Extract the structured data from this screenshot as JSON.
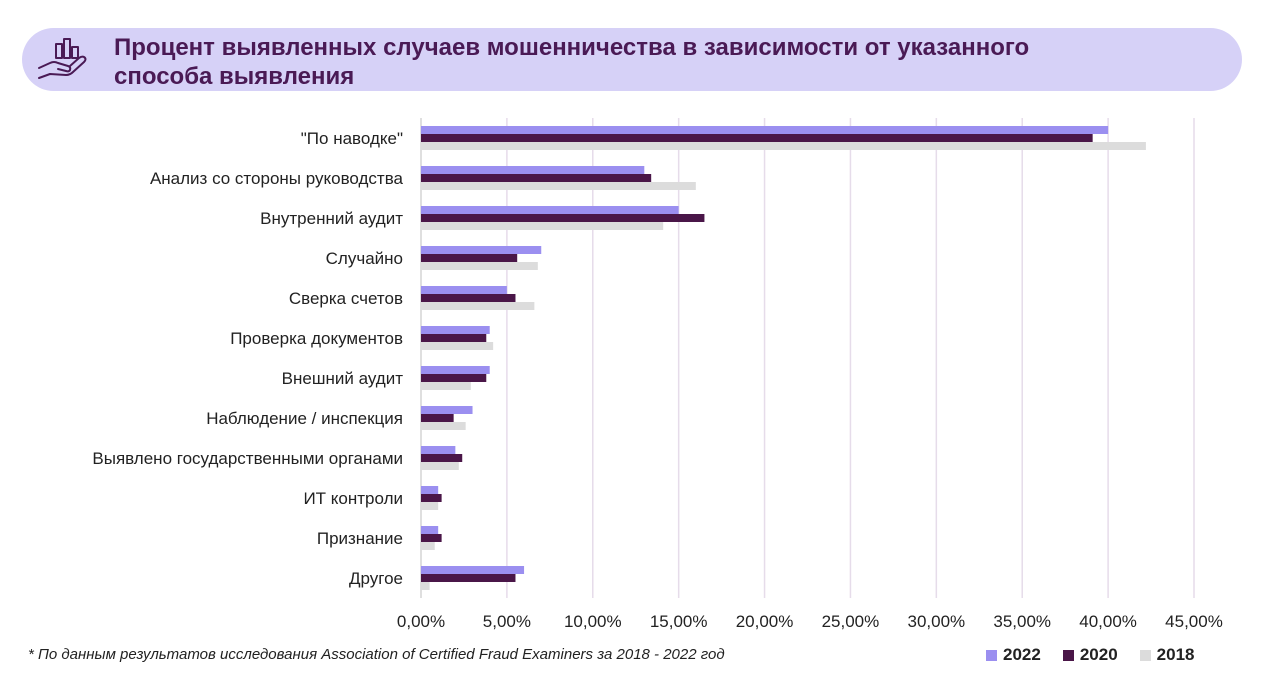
{
  "header": {
    "title_line1": "Процент выявленных случаев мошенничества в зависимости от указанного",
    "title_line2": "способа выявления",
    "icon": "hand-chart-icon"
  },
  "footnote": "* По данным результатов исследования Association of Certified Fraud Examiners за 2018 - 2022 год",
  "colors": {
    "2022": "#9b8ff0",
    "2020": "#4a1648",
    "2018": "#dcdcdc",
    "grid": "#e6dcea"
  },
  "chart_data": {
    "type": "bar",
    "orientation": "horizontal",
    "title": "Процент выявленных случаев мошенничества в зависимости от указанного способа выявления",
    "categories": [
      "\"По наводке\"",
      "Анализ со стороны руководства",
      "Внутренний аудит",
      "Случайно",
      "Сверка счетов",
      "Проверка документов",
      "Внешний аудит",
      "Наблюдение / инспекция",
      "Выявлено государственными органами",
      "ИТ контроли",
      "Признание",
      "Другое"
    ],
    "series": [
      {
        "name": "2022",
        "values": [
          40.0,
          13.0,
          15.0,
          7.0,
          5.0,
          4.0,
          4.0,
          3.0,
          2.0,
          1.0,
          1.0,
          6.0
        ]
      },
      {
        "name": "2020",
        "values": [
          39.1,
          13.4,
          16.5,
          5.6,
          5.5,
          3.8,
          3.8,
          1.9,
          2.4,
          1.2,
          1.2,
          5.5
        ]
      },
      {
        "name": "2018",
        "values": [
          42.2,
          16.0,
          14.1,
          6.8,
          6.6,
          4.2,
          2.9,
          2.6,
          2.2,
          1.0,
          0.8,
          0.5
        ]
      }
    ],
    "xticks": [
      "0,00%",
      "5,00%",
      "10,00%",
      "15,00%",
      "20,00%",
      "25,00%",
      "30,00%",
      "35,00%",
      "40,00%",
      "45,00%"
    ],
    "xlim": [
      0,
      45
    ],
    "grid": "vertical",
    "legend": "bottom-right"
  }
}
